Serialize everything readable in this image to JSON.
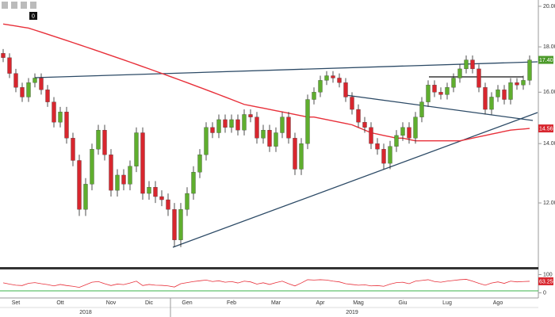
{
  "toolbar_badge": "0",
  "chart_data": {
    "type": "candlestick",
    "log_scale": true,
    "up_color": "#5fae2e",
    "down_color": "#d8262e",
    "ma_color": "#e8303a",
    "osc_color": "#e8303a",
    "categories": [
      null,
      null,
      "Set",
      null,
      null,
      null,
      null,
      null,
      null,
      "Ott",
      null,
      null,
      null,
      null,
      null,
      null,
      null,
      "Nov",
      null,
      null,
      null,
      null,
      null,
      "Dic",
      null,
      null,
      null,
      null,
      null,
      "Gen",
      null,
      null,
      null,
      null,
      null,
      null,
      "Feb",
      null,
      null,
      null,
      null,
      null,
      null,
      "Mar",
      null,
      null,
      null,
      null,
      null,
      null,
      "Apr",
      null,
      null,
      null,
      null,
      null,
      "Mag",
      null,
      null,
      null,
      null,
      null,
      null,
      "Giu",
      null,
      null,
      null,
      null,
      null,
      null,
      "Lug",
      null,
      null,
      null,
      null,
      null,
      null,
      null,
      "Ago",
      null,
      null,
      null,
      null,
      null
    ],
    "years": [
      null,
      null,
      null,
      null,
      null,
      null,
      null,
      null,
      null,
      null,
      null,
      null,
      null,
      "2018",
      null,
      null,
      null,
      null,
      null,
      null,
      null,
      null,
      null,
      null,
      null,
      null,
      null,
      null,
      null,
      null,
      null,
      null,
      null,
      null,
      null,
      null,
      null,
      null,
      null,
      null,
      null,
      null,
      null,
      null,
      null,
      null,
      null,
      null,
      null,
      null,
      null,
      null,
      null,
      null,
      null,
      "2019",
      null,
      null,
      null,
      null,
      null,
      null,
      null,
      null,
      null,
      null,
      null,
      null,
      null,
      null,
      null,
      null,
      null,
      null,
      null,
      null,
      null,
      null,
      null,
      null,
      null,
      null,
      null,
      null
    ],
    "open": [
      17.7,
      17.5,
      16.8,
      16.2,
      15.8,
      16.4,
      16.6,
      16.1,
      15.6,
      14.8,
      15.2,
      14.2,
      13.4,
      11.8,
      12.6,
      13.8,
      14.5,
      13.6,
      12.4,
      12.9,
      12.6,
      13.2,
      14.4,
      12.3,
      12.5,
      12.2,
      12.1,
      11.8,
      10.9,
      11.8,
      12.3,
      13.0,
      13.6,
      14.6,
      14.4,
      14.9,
      14.6,
      14.9,
      14.5,
      15.1,
      15.0,
      14.2,
      14.5,
      13.9,
      14.4,
      15.0,
      14.2,
      13.1,
      14.0,
      15.7,
      16.0,
      16.5,
      16.7,
      16.6,
      16.4,
      15.8,
      15.3,
      14.8,
      14.6,
      14.0,
      13.8,
      13.3,
      13.9,
      14.3,
      14.6,
      14.2,
      15.0,
      15.6,
      16.3,
      16.0,
      15.9,
      16.2,
      16.6,
      17.0,
      17.4,
      17.0,
      16.2,
      15.3,
      15.8,
      16.1,
      15.7,
      16.4,
      16.3,
      16.5
    ],
    "high": [
      17.9,
      17.7,
      17.0,
      16.4,
      16.6,
      16.8,
      16.8,
      16.3,
      15.8,
      15.4,
      15.4,
      14.4,
      13.6,
      12.8,
      14.0,
      14.7,
      14.7,
      13.8,
      13.1,
      13.1,
      13.4,
      14.6,
      14.6,
      12.7,
      12.7,
      12.4,
      12.3,
      12.0,
      12.0,
      12.5,
      13.2,
      13.8,
      14.8,
      14.8,
      15.1,
      15.1,
      15.1,
      15.1,
      15.3,
      15.3,
      15.2,
      14.7,
      14.7,
      14.6,
      15.2,
      15.2,
      14.4,
      14.2,
      15.9,
      16.2,
      16.7,
      16.9,
      16.9,
      16.8,
      16.6,
      16.0,
      15.5,
      15.0,
      14.8,
      14.2,
      14.0,
      14.1,
      14.5,
      14.8,
      14.8,
      15.2,
      15.8,
      16.5,
      16.5,
      16.2,
      16.4,
      16.8,
      17.2,
      17.6,
      17.6,
      17.2,
      16.4,
      16.0,
      16.3,
      16.3,
      16.6,
      16.6,
      16.7,
      17.6
    ],
    "low": [
      17.3,
      16.6,
      16.0,
      15.6,
      15.6,
      16.2,
      15.9,
      15.4,
      14.6,
      14.6,
      14.0,
      13.2,
      11.6,
      11.6,
      12.4,
      13.6,
      13.4,
      12.2,
      12.2,
      12.4,
      12.4,
      13.0,
      12.1,
      12.1,
      12.0,
      11.9,
      11.6,
      10.7,
      10.7,
      11.6,
      12.1,
      12.8,
      13.4,
      14.2,
      14.2,
      14.4,
      14.4,
      14.3,
      14.3,
      14.8,
      14.0,
      14.0,
      13.7,
      13.7,
      14.2,
      14.0,
      12.9,
      12.9,
      13.8,
      15.5,
      15.8,
      16.3,
      16.4,
      16.2,
      15.6,
      15.1,
      14.6,
      14.4,
      13.8,
      13.6,
      13.1,
      13.1,
      13.7,
      14.1,
      14.0,
      14.0,
      14.8,
      15.4,
      15.8,
      15.7,
      15.7,
      16.0,
      16.4,
      16.8,
      16.8,
      16.0,
      15.1,
      15.1,
      15.6,
      15.5,
      15.5,
      16.1,
      16.1,
      16.3
    ],
    "close": [
      17.5,
      16.8,
      16.2,
      15.8,
      16.4,
      16.6,
      16.1,
      15.6,
      14.8,
      15.2,
      14.2,
      13.4,
      11.8,
      12.6,
      13.8,
      14.5,
      13.6,
      12.4,
      12.9,
      12.6,
      13.2,
      14.4,
      12.3,
      12.5,
      12.2,
      12.1,
      11.8,
      10.9,
      11.8,
      12.3,
      13.0,
      13.6,
      14.6,
      14.4,
      14.9,
      14.6,
      14.9,
      14.5,
      15.1,
      15.0,
      14.2,
      14.5,
      13.9,
      14.4,
      15.0,
      14.2,
      13.1,
      14.0,
      15.7,
      16.0,
      16.5,
      16.7,
      16.6,
      16.4,
      15.8,
      15.3,
      14.8,
      14.6,
      14.0,
      13.8,
      13.3,
      13.9,
      14.3,
      14.6,
      14.2,
      15.0,
      15.6,
      16.3,
      16.0,
      15.9,
      16.2,
      16.6,
      17.0,
      17.4,
      17.0,
      16.2,
      15.3,
      15.8,
      16.1,
      15.7,
      16.4,
      16.3,
      16.5,
      17.4
    ],
    "ma": [
      19.1,
      19.05,
      19.0,
      18.95,
      18.9,
      18.8,
      18.7,
      18.6,
      18.5,
      18.4,
      18.3,
      18.2,
      18.1,
      18.0,
      17.9,
      17.8,
      17.7,
      17.6,
      17.5,
      17.4,
      17.3,
      17.2,
      17.1,
      17.0,
      16.9,
      16.8,
      16.7,
      16.6,
      16.5,
      16.4,
      16.3,
      16.2,
      16.1,
      16.0,
      15.9,
      15.8,
      15.7,
      15.6,
      15.5,
      15.45,
      15.4,
      15.35,
      15.3,
      15.25,
      15.2,
      15.15,
      15.1,
      15.05,
      15.0,
      15.0,
      14.95,
      14.9,
      14.85,
      14.8,
      14.75,
      14.7,
      14.6,
      14.5,
      14.4,
      14.35,
      14.3,
      14.25,
      14.2,
      14.2,
      14.15,
      14.1,
      14.1,
      14.1,
      14.1,
      14.1,
      14.1,
      14.1,
      14.1,
      14.15,
      14.2,
      14.25,
      14.3,
      14.35,
      14.4,
      14.45,
      14.5,
      14.52,
      14.54,
      14.5617
    ],
    "last_close": {
      "value": 17.4,
      "label": "17.40"
    },
    "last_ma": 14.5617,
    "ylim": [
      10.2,
      20.33
    ],
    "yticks": [
      {
        "value": 12,
        "label": "12.00"
      },
      {
        "value": 14,
        "label": "14.00"
      },
      {
        "value": 16,
        "label": "16.00"
      },
      {
        "value": 18,
        "label": "18.00"
      },
      {
        "value": 20,
        "label": "20.00"
      }
    ],
    "osc": [
      55,
      48,
      42,
      40,
      52,
      56,
      50,
      45,
      38,
      46,
      40,
      36,
      30,
      44,
      58,
      62,
      50,
      40,
      48,
      45,
      54,
      64,
      40,
      46,
      42,
      41,
      38,
      32,
      50,
      56,
      62,
      66,
      70,
      62,
      66,
      58,
      62,
      54,
      64,
      60,
      48,
      55,
      46,
      56,
      64,
      50,
      38,
      54,
      72,
      70,
      72,
      70,
      64,
      60,
      50,
      46,
      42,
      44,
      38,
      40,
      36,
      48,
      56,
      58,
      50,
      64,
      68,
      72,
      62,
      58,
      64,
      68,
      72,
      74,
      64,
      52,
      42,
      54,
      60,
      52,
      64,
      60,
      62,
      63.2569
    ],
    "osc_label": {
      "value": 63.2569,
      "label": "63.2569"
    },
    "osc_ylim": [
      -15,
      115
    ],
    "osc_yticks": [
      0,
      100
    ]
  }
}
